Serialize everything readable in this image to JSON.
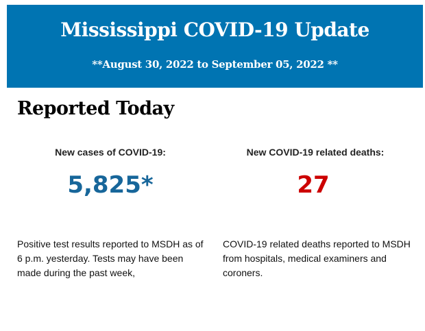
{
  "header": {
    "title": "Mississippi COVID-19 Update",
    "date_range": "**August 30, 2022 to September 05, 2022 **",
    "background_color": "#0074b2"
  },
  "section_title": "Reported Today",
  "stats": [
    {
      "label": "New cases of COVID-19:",
      "value": "5,825*",
      "color": "#17669a",
      "description": "Positive test results reported to MSDH as of 6 p.m. yesterday. Tests may have been made during the past week,"
    },
    {
      "label": "New COVID-19 related deaths:",
      "value": "27",
      "color": "#cc0000",
      "description": "COVID-19 related deaths reported to MSDH from hospitals, medical examiners and coroners."
    }
  ]
}
